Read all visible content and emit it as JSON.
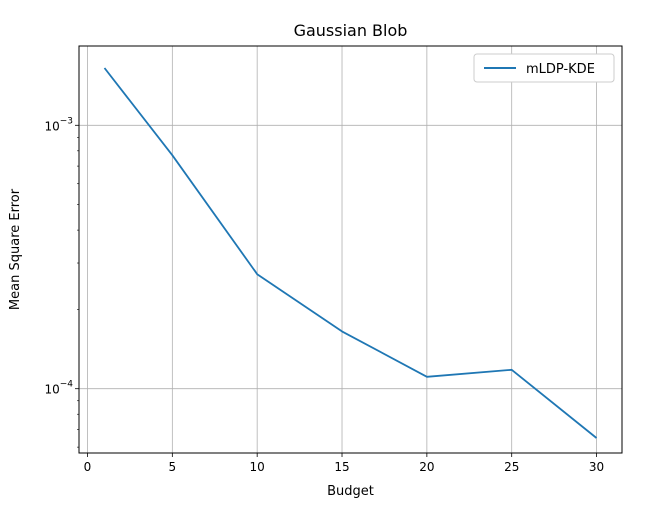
{
  "chart_data": {
    "type": "line",
    "title": "Gaussian Blob",
    "xlabel": "Budget",
    "ylabel": "Mean Square Error",
    "y_scale": "log",
    "grid": true,
    "legend_position": "top-right",
    "xlim": [
      -0.5,
      31.5
    ],
    "ylim": [
      5.7e-05,
      0.002
    ],
    "x_ticks": [
      {
        "value": 0,
        "label": "0"
      },
      {
        "value": 5,
        "label": "5"
      },
      {
        "value": 10,
        "label": "10"
      },
      {
        "value": 15,
        "label": "15"
      },
      {
        "value": 20,
        "label": "20"
      },
      {
        "value": 25,
        "label": "25"
      },
      {
        "value": 30,
        "label": "30"
      }
    ],
    "y_ticks": [
      {
        "value": 0.001,
        "base": "10",
        "exp": "−3"
      },
      {
        "value": 0.0001,
        "base": "10",
        "exp": "−4"
      }
    ],
    "series": [
      {
        "name": "mLDP-KDE",
        "color": "#1f77b4",
        "x": [
          1,
          5,
          10,
          15,
          20,
          25,
          30
        ],
        "y": [
          0.00165,
          0.00077,
          0.000272,
          0.000165,
          0.000111,
          0.000118,
          6.5e-05
        ]
      }
    ]
  }
}
